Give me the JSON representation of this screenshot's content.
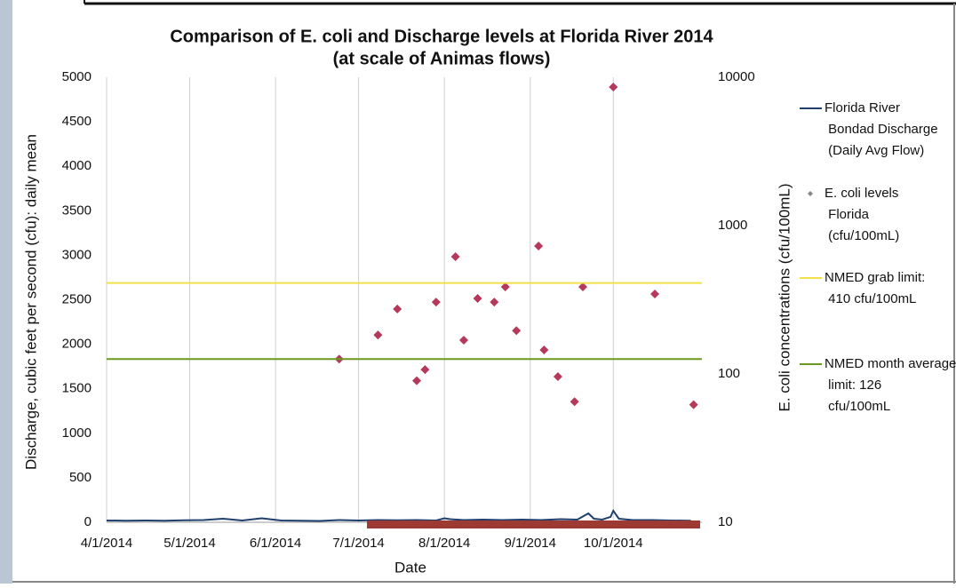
{
  "chart_data": {
    "type": "line-scatter",
    "title": "Comparison of E. coli and Discharge levels at Florida River 2014",
    "subtitle": "(at scale of Animas flows)",
    "xlabel": "Date",
    "ylabel": "Discharge, cubic feet per second (cfu): daily mean",
    "y2label": "E. coli concentrations (cfu/100mL)",
    "xlim": [
      "4/1/2014",
      "11/2/2014"
    ],
    "xticks": [
      "4/1/2014",
      "5/1/2014",
      "6/1/2014",
      "7/1/2014",
      "8/1/2014",
      "9/1/2014",
      "10/1/2014"
    ],
    "ylim": [
      0,
      5000
    ],
    "yticks": [
      0,
      500,
      1000,
      1500,
      2000,
      2500,
      3000,
      3500,
      4000,
      4500,
      5000
    ],
    "y2lim": [
      10,
      10000
    ],
    "y2ticks": [
      10,
      100,
      1000,
      10000
    ],
    "y2scale": "log",
    "grid": "x",
    "legend": "right",
    "series": [
      {
        "name": "Florida River Bondad Discharge (Daily Avg Flow)",
        "kind": "line",
        "color": "#1f3f6e",
        "x": [
          "4/1/2014",
          "4/8/2014",
          "4/15/2014",
          "4/22/2014",
          "4/29/2014",
          "5/6/2014",
          "5/13/2014",
          "5/20/2014",
          "5/27/2014",
          "6/3/2014",
          "6/10/2014",
          "6/17/2014",
          "6/24/2014",
          "7/1/2014",
          "7/8/2014",
          "7/15/2014",
          "7/22/2014",
          "7/29/2014",
          "8/1/2014",
          "8/3/2014",
          "8/8/2014",
          "8/15/2014",
          "8/22/2014",
          "8/29/2014",
          "9/5/2014",
          "9/12/2014",
          "9/18/2014",
          "9/22/2014",
          "9/24/2014",
          "9/27/2014",
          "9/30/2014",
          "10/1/2014",
          "10/3/2014",
          "10/8/2014",
          "10/15/2014",
          "10/22/2014",
          "10/29/2014"
        ],
        "values": [
          20,
          18,
          20,
          18,
          22,
          25,
          40,
          20,
          45,
          20,
          18,
          15,
          25,
          20,
          25,
          22,
          25,
          20,
          45,
          35,
          25,
          30,
          25,
          30,
          25,
          35,
          30,
          100,
          40,
          30,
          60,
          130,
          40,
          25,
          25,
          20,
          18
        ]
      },
      {
        "name": "E. coli levels Florida (cfu/100mL)",
        "kind": "scatter",
        "axis": "y2",
        "color": "#b5395a",
        "x": [
          "6/24/2014",
          "7/8/2014",
          "7/15/2014",
          "7/22/2014",
          "7/25/2014",
          "7/29/2014",
          "8/5/2014",
          "8/8/2014",
          "8/13/2014",
          "8/19/2014",
          "8/23/2014",
          "8/27/2014",
          "9/4/2014",
          "9/6/2014",
          "9/11/2014",
          "9/17/2014",
          "9/20/2014",
          "10/1/2014",
          "10/16/2014",
          "10/30/2014"
        ],
        "values": [
          126,
          183,
          274,
          90,
          107,
          305,
          617,
          169,
          323,
          305,
          386,
          196,
          728,
          145,
          96,
          65,
          386,
          8600,
          346,
          62
        ]
      },
      {
        "name": "NMED grab limit: 410 cfu/100mL",
        "kind": "hline",
        "axis": "y2",
        "color": "#f2e04a",
        "values": [
          410
        ]
      },
      {
        "name": "NMED month average limit: 126 cfu/100mL",
        "kind": "hline",
        "axis": "y2",
        "color": "#6a9a1f",
        "values": [
          126
        ]
      }
    ]
  }
}
